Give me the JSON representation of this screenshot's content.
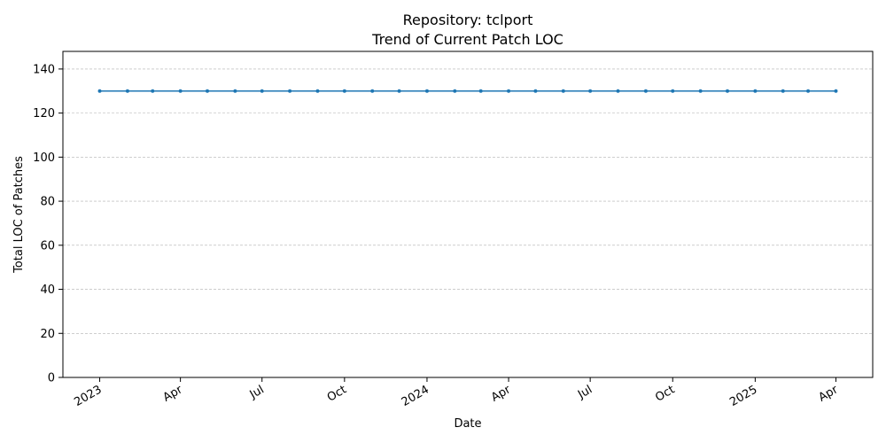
{
  "chart_data": {
    "type": "line",
    "title": "Repository: tclport",
    "subtitle": "Trend of Current Patch LOC",
    "xlabel": "Date",
    "ylabel": "Total LOC of Patches",
    "ylim": [
      0,
      148
    ],
    "yticks": [
      0,
      20,
      40,
      60,
      80,
      100,
      120,
      140
    ],
    "grid": "y",
    "xticks": [
      {
        "date": "2023-01-01",
        "label": "2023"
      },
      {
        "date": "2023-04-01",
        "label": "Apr"
      },
      {
        "date": "2023-07-01",
        "label": "Jul"
      },
      {
        "date": "2023-10-01",
        "label": "Oct"
      },
      {
        "date": "2024-01-01",
        "label": "2024"
      },
      {
        "date": "2024-04-01",
        "label": "Apr"
      },
      {
        "date": "2024-07-01",
        "label": "Jul"
      },
      {
        "date": "2024-10-01",
        "label": "Oct"
      },
      {
        "date": "2025-01-01",
        "label": "2025"
      },
      {
        "date": "2025-04-01",
        "label": "Apr"
      }
    ],
    "x": [
      "2023-01-01",
      "2023-02-01",
      "2023-03-01",
      "2023-04-01",
      "2023-05-01",
      "2023-06-01",
      "2023-07-01",
      "2023-08-01",
      "2023-09-01",
      "2023-10-01",
      "2023-11-01",
      "2023-12-01",
      "2024-01-01",
      "2024-02-01",
      "2024-03-01",
      "2024-04-01",
      "2024-05-01",
      "2024-06-01",
      "2024-07-01",
      "2024-08-01",
      "2024-09-01",
      "2024-10-01",
      "2024-11-01",
      "2024-12-01",
      "2025-01-01",
      "2025-02-01",
      "2025-03-01",
      "2025-04-01"
    ],
    "series": [
      {
        "values": [
          130,
          130,
          130,
          130,
          130,
          130,
          130,
          130,
          130,
          130,
          130,
          130,
          130,
          130,
          130,
          130,
          130,
          130,
          130,
          130,
          130,
          130,
          130,
          130,
          130,
          130,
          130,
          130
        ],
        "color": "#1f77b4"
      }
    ]
  }
}
